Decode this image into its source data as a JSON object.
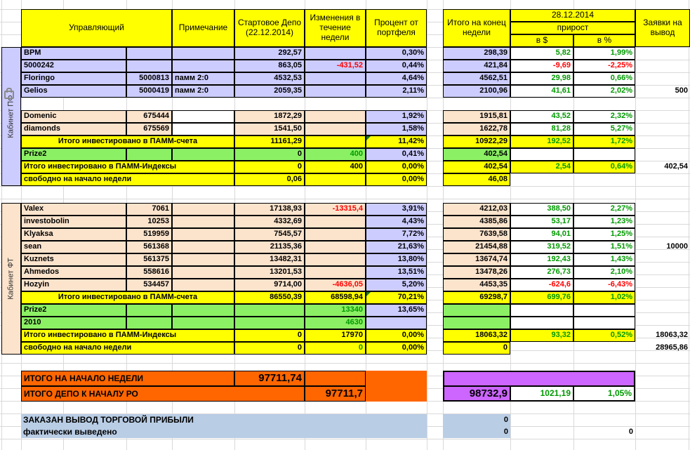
{
  "header": {
    "manager": "Управляющий",
    "note": "Примечание",
    "start_depo": "Стартовое Депо (22.12.2014)",
    "week_changes": "Изменения в течение недели",
    "portfolio_pct": "Процент от портфеля",
    "week_total": "Итого на конец недели",
    "date": "28.12.2014",
    "gain": "прирост",
    "gain_usd": "в $",
    "gain_pct": "в %",
    "withdraw": "Заявки на вывод"
  },
  "sections": [
    {
      "label": "Кабинет ПФ"
    },
    {
      "label": "Кабинет ФТ"
    }
  ],
  "rows": [
    {
      "r": 5,
      "cells": [
        [
          "name",
          "BPM",
          "pf"
        ],
        [
          "account",
          "",
          "pf"
        ],
        [
          "note",
          "",
          "pf"
        ],
        [
          "start",
          "292,57",
          "pf num"
        ],
        [
          "change",
          "",
          "pf"
        ],
        [
          "pct",
          "0,30%",
          "lav num"
        ],
        [
          "total",
          "298,39",
          "pf num"
        ],
        [
          "usd",
          "5,82",
          "wht num tg"
        ],
        [
          "gpct",
          "1,99%",
          "wht num tg"
        ]
      ]
    },
    {
      "r": 6,
      "cells": [
        [
          "name",
          "5000242",
          "pf"
        ],
        [
          "account",
          "",
          "pf"
        ],
        [
          "note",
          "",
          "pf"
        ],
        [
          "start",
          "863,05",
          "pf num"
        ],
        [
          "change",
          "-431,52",
          "pf num tr"
        ],
        [
          "pct",
          "0,44%",
          "lav num"
        ],
        [
          "total",
          "421,84",
          "pf num"
        ],
        [
          "usd",
          "-9,69",
          "wht num tr"
        ],
        [
          "gpct",
          "-2,25%",
          "wht num tr"
        ]
      ]
    },
    {
      "r": 7,
      "cells": [
        [
          "name",
          "Floringo",
          "pf"
        ],
        [
          "account",
          "5000813",
          "pf num"
        ],
        [
          "note",
          "памм 2:0",
          "pf"
        ],
        [
          "start",
          "4532,53",
          "pf num"
        ],
        [
          "change",
          "",
          "pf"
        ],
        [
          "pct",
          "4,64%",
          "lav num"
        ],
        [
          "total",
          "4562,51",
          "pf num"
        ],
        [
          "usd",
          "29,98",
          "wht num tg"
        ],
        [
          "gpct",
          "0,66%",
          "wht num tg"
        ]
      ]
    },
    {
      "r": 8,
      "cells": [
        [
          "name",
          "Gelios",
          "pf"
        ],
        [
          "account",
          "5000419",
          "pf num"
        ],
        [
          "note",
          "памм 2:0",
          "pf"
        ],
        [
          "start",
          "2059,35",
          "pf num"
        ],
        [
          "change",
          "",
          "pf"
        ],
        [
          "pct",
          "2,11%",
          "lav num"
        ],
        [
          "total",
          "2100,96",
          "pf num"
        ],
        [
          "usd",
          "41,61",
          "wht num tg"
        ],
        [
          "gpct",
          "2,02%",
          "wht num tg"
        ],
        [
          "wd",
          "500",
          "plain num"
        ]
      ]
    },
    {
      "r": 10,
      "cells": [
        [
          "name",
          "Domenic",
          "ft"
        ],
        [
          "account",
          "675444",
          "ft num"
        ],
        [
          "note",
          "",
          "wht"
        ],
        [
          "start",
          "1872,29",
          "ft num"
        ],
        [
          "change",
          "",
          "ft"
        ],
        [
          "pct",
          "1,92%",
          "lav num"
        ],
        [
          "total",
          "1915,81",
          "ft num"
        ],
        [
          "usd",
          "43,52",
          "wht num tg"
        ],
        [
          "gpct",
          "2,32%",
          "wht num tg"
        ]
      ]
    },
    {
      "r": 11,
      "cells": [
        [
          "name",
          "diamonds",
          "ft"
        ],
        [
          "account",
          "675569",
          "ft num"
        ],
        [
          "note",
          "",
          "wht"
        ],
        [
          "start",
          "1541,50",
          "ft num"
        ],
        [
          "change",
          "",
          "ft"
        ],
        [
          "pct",
          "1,58%",
          "lav num"
        ],
        [
          "total",
          "1622,78",
          "ft num"
        ],
        [
          "usd",
          "81,28",
          "wht num tg"
        ],
        [
          "gpct",
          "5,27%",
          "wht num tg"
        ]
      ]
    },
    {
      "r": 12,
      "cells": [
        [
          "label3",
          "Итого инвестировано в ПАММ-счета",
          "yel ctr"
        ],
        [
          "start",
          "11161,29",
          "yel num"
        ],
        [
          "change",
          "",
          "yel"
        ],
        [
          "pct",
          "11,42%",
          "yel num tri"
        ],
        [
          "total",
          "10922,29",
          "yel num"
        ],
        [
          "usd",
          "192,52",
          "yel num tg"
        ],
        [
          "gpct",
          "1,72%",
          "yel num tg"
        ]
      ]
    },
    {
      "r": 13,
      "cells": [
        [
          "name",
          "Prize2",
          "grn"
        ],
        [
          "account",
          "",
          "grn"
        ],
        [
          "note",
          "",
          "grn"
        ],
        [
          "start",
          "0",
          "grn num"
        ],
        [
          "change",
          "400",
          "grn num tg"
        ],
        [
          "pct",
          "0,41%",
          "lav num"
        ],
        [
          "total",
          "402,54",
          "grn num"
        ],
        [
          "usd",
          "",
          "wht"
        ],
        [
          "gpct",
          "",
          "wht"
        ]
      ]
    },
    {
      "r": 14,
      "cells": [
        [
          "label3",
          "Итого инвестировано в ПАММ-Индексы",
          "yel"
        ],
        [
          "start",
          "0",
          "yel num"
        ],
        [
          "change",
          "400",
          "yel num"
        ],
        [
          "pct",
          "0,00%",
          "yel num"
        ],
        [
          "total",
          "402,54",
          "yel num"
        ],
        [
          "usd",
          "2,54",
          "yel num tg"
        ],
        [
          "gpct",
          "0,64%",
          "yel num tg"
        ],
        [
          "wd",
          "402,54",
          "plain num"
        ]
      ]
    },
    {
      "r": 15,
      "cells": [
        [
          "label3",
          "свободно на начало недели",
          "yel"
        ],
        [
          "start",
          "0,06",
          "yel num"
        ],
        [
          "change",
          "",
          "yel"
        ],
        [
          "pct",
          "0,00%",
          "yel num"
        ],
        [
          "total",
          "46,08",
          "yel num"
        ]
      ]
    },
    {
      "r": 17,
      "cells": [
        [
          "name",
          "Valex",
          "ft"
        ],
        [
          "account",
          "7061",
          "ft num"
        ],
        [
          "note",
          "",
          "ft"
        ],
        [
          "start",
          "17138,93",
          "ft num"
        ],
        [
          "change",
          "-13315,4",
          "ft num tr"
        ],
        [
          "pct",
          "3,91%",
          "lav num"
        ],
        [
          "total",
          "4212,03",
          "ft num"
        ],
        [
          "usd",
          "388,50",
          "wht num tg"
        ],
        [
          "gpct",
          "2,27%",
          "wht num tg"
        ]
      ]
    },
    {
      "r": 18,
      "cells": [
        [
          "name",
          "investobolin",
          "ft"
        ],
        [
          "account",
          "10253",
          "ft num"
        ],
        [
          "note",
          "",
          "ft"
        ],
        [
          "start",
          "4332,69",
          "ft num"
        ],
        [
          "change",
          "",
          "ft"
        ],
        [
          "pct",
          "4,43%",
          "lav num"
        ],
        [
          "total",
          "4385,86",
          "ft num"
        ],
        [
          "usd",
          "53,17",
          "wht num tg"
        ],
        [
          "gpct",
          "1,23%",
          "wht num tg"
        ]
      ]
    },
    {
      "r": 19,
      "cells": [
        [
          "name",
          "Klyaksa",
          "ft"
        ],
        [
          "account",
          "519959",
          "ft num"
        ],
        [
          "note",
          "",
          "ft"
        ],
        [
          "start",
          "7545,57",
          "ft num"
        ],
        [
          "change",
          "",
          "ft"
        ],
        [
          "pct",
          "7,72%",
          "lav num"
        ],
        [
          "total",
          "7639,58",
          "ft num"
        ],
        [
          "usd",
          "94,01",
          "wht num tg"
        ],
        [
          "gpct",
          "1,25%",
          "wht num tg"
        ]
      ]
    },
    {
      "r": 20,
      "cells": [
        [
          "name",
          "sean",
          "ft"
        ],
        [
          "account",
          "561368",
          "ft num"
        ],
        [
          "note",
          "",
          "ft"
        ],
        [
          "start",
          "21135,36",
          "ft num"
        ],
        [
          "change",
          "",
          "ft"
        ],
        [
          "pct",
          "21,63%",
          "lav num"
        ],
        [
          "total",
          "21454,88",
          "ft num"
        ],
        [
          "usd",
          "319,52",
          "wht num tg"
        ],
        [
          "gpct",
          "1,51%",
          "wht num tg"
        ],
        [
          "wd",
          "10000",
          "plain num"
        ]
      ]
    },
    {
      "r": 21,
      "cells": [
        [
          "name",
          "Kuznets",
          "ft"
        ],
        [
          "account",
          "561375",
          "ft num"
        ],
        [
          "note",
          "",
          "ft"
        ],
        [
          "start",
          "13482,31",
          "ft num"
        ],
        [
          "change",
          "",
          "ft"
        ],
        [
          "pct",
          "13,80%",
          "lav num"
        ],
        [
          "total",
          "13674,74",
          "ft num"
        ],
        [
          "usd",
          "192,43",
          "wht num tg"
        ],
        [
          "gpct",
          "1,43%",
          "wht num tg"
        ]
      ]
    },
    {
      "r": 22,
      "cells": [
        [
          "name",
          "Ahmedos",
          "ft"
        ],
        [
          "account",
          "558616",
          "ft num"
        ],
        [
          "note",
          "",
          "ft"
        ],
        [
          "start",
          "13201,53",
          "ft num"
        ],
        [
          "change",
          "",
          "ft"
        ],
        [
          "pct",
          "13,51%",
          "lav num"
        ],
        [
          "total",
          "13478,26",
          "ft num"
        ],
        [
          "usd",
          "276,73",
          "wht num tg"
        ],
        [
          "gpct",
          "2,10%",
          "wht num tg"
        ]
      ]
    },
    {
      "r": 23,
      "cells": [
        [
          "name",
          "Hozyin",
          "ft"
        ],
        [
          "account",
          "534457",
          "ft num"
        ],
        [
          "note",
          "",
          "ft"
        ],
        [
          "start",
          "9714,00",
          "ft num"
        ],
        [
          "change",
          "-4636,05",
          "ft num tr"
        ],
        [
          "pct",
          "5,20%",
          "lav num"
        ],
        [
          "total",
          "4453,35",
          "ft num"
        ],
        [
          "usd",
          "-624,6",
          "wht num tr"
        ],
        [
          "gpct",
          "-6,43%",
          "wht num tr"
        ]
      ]
    },
    {
      "r": 24,
      "cells": [
        [
          "label3",
          "Итого инвестировано в ПАММ-счета",
          "yel ctr"
        ],
        [
          "start",
          "86550,39",
          "yel num"
        ],
        [
          "change",
          "68598,94",
          "yel num"
        ],
        [
          "pct",
          "70,21%",
          "yel num tri"
        ],
        [
          "total",
          "69298,7",
          "yel num"
        ],
        [
          "usd",
          "699,76",
          "yel num tg"
        ],
        [
          "gpct",
          "1,02%",
          "yel num tg"
        ]
      ]
    },
    {
      "r": 25,
      "cells": [
        [
          "name",
          "Prize2",
          "grn"
        ],
        [
          "account",
          "",
          "grn"
        ],
        [
          "note",
          "",
          "grn"
        ],
        [
          "start",
          "",
          "grn"
        ],
        [
          "change",
          "13340",
          "grn num tg"
        ],
        [
          "pct",
          "13,65%",
          "lav num"
        ],
        [
          "total",
          "",
          "grn"
        ],
        [
          "usd",
          "",
          "wht"
        ],
        [
          "gpct",
          "",
          "wht"
        ]
      ]
    },
    {
      "r": 26,
      "cells": [
        [
          "name",
          "2010",
          "grn"
        ],
        [
          "account",
          "",
          "grn"
        ],
        [
          "note",
          "",
          "grn"
        ],
        [
          "start",
          "",
          "grn"
        ],
        [
          "change",
          "4630",
          "grn num tg"
        ],
        [
          "pct",
          "",
          "lav"
        ],
        [
          "total",
          "",
          "grn"
        ],
        [
          "usd",
          "",
          "wht"
        ],
        [
          "gpct",
          "",
          "wht"
        ]
      ]
    },
    {
      "r": 27,
      "cells": [
        [
          "label3",
          "Итого инвестировано в ПАММ-Индексы",
          "yel"
        ],
        [
          "start",
          "0",
          "yel num"
        ],
        [
          "change",
          "17970",
          "yel num"
        ],
        [
          "pct",
          "0,00%",
          "yel num"
        ],
        [
          "total",
          "18063,32",
          "yel num"
        ],
        [
          "usd",
          "93,32",
          "yel num tg"
        ],
        [
          "gpct",
          "0,52%",
          "yel num tg"
        ],
        [
          "wd",
          "18063,32",
          "plain num"
        ]
      ]
    },
    {
      "r": 28,
      "cells": [
        [
          "label3",
          "свободно на начало недели",
          "yel"
        ],
        [
          "start",
          "0",
          "yel num"
        ],
        [
          "change",
          "0",
          "yel num tg"
        ],
        [
          "pct",
          "0,00%",
          "yel num"
        ],
        [
          "total",
          "0",
          "yel num"
        ],
        [
          "wd",
          "28965,86",
          "plain num"
        ]
      ]
    },
    {
      "r": 30,
      "cells": [
        [
          "label3",
          "ИТОГО НА НАЧАЛО НЕДЕЛИ",
          "org fs12"
        ],
        [
          "start",
          "97711,74",
          "org num big"
        ],
        [
          "change",
          "",
          "org"
        ],
        [
          "pct",
          "",
          "org nb"
        ],
        [
          "mag3",
          "",
          "mag bt2 bl2 br2"
        ]
      ]
    },
    {
      "r": 31,
      "cells": [
        [
          "label4",
          "ИТОГО ДЕПО К НАЧАЛУ РО",
          "org fs12"
        ],
        [
          "change",
          "97711,7",
          "org num big"
        ],
        [
          "pct",
          "",
          "org nb"
        ],
        [
          "total",
          "98732,9",
          "mag num big bl2 bb2"
        ],
        [
          "usd",
          "1021,19",
          "wht num tg bb2 fs12"
        ],
        [
          "gpct",
          "1,05%",
          "wht num tg bb2 br2 fs12"
        ]
      ]
    },
    {
      "r": 33,
      "cells": [
        [
          "label6",
          "ЗАКАЗАН ВЫВОД ТОРГОВОЙ ПРИБЫЛИ",
          "blu nb fs12"
        ],
        [
          "total",
          "0",
          "blu nb num"
        ]
      ]
    },
    {
      "r": 34,
      "cells": [
        [
          "label6",
          "фактически выведено",
          "blu nb fs12"
        ],
        [
          "total",
          "0",
          "blu nb num"
        ],
        [
          "gpct",
          "0",
          "plain num"
        ]
      ]
    }
  ]
}
